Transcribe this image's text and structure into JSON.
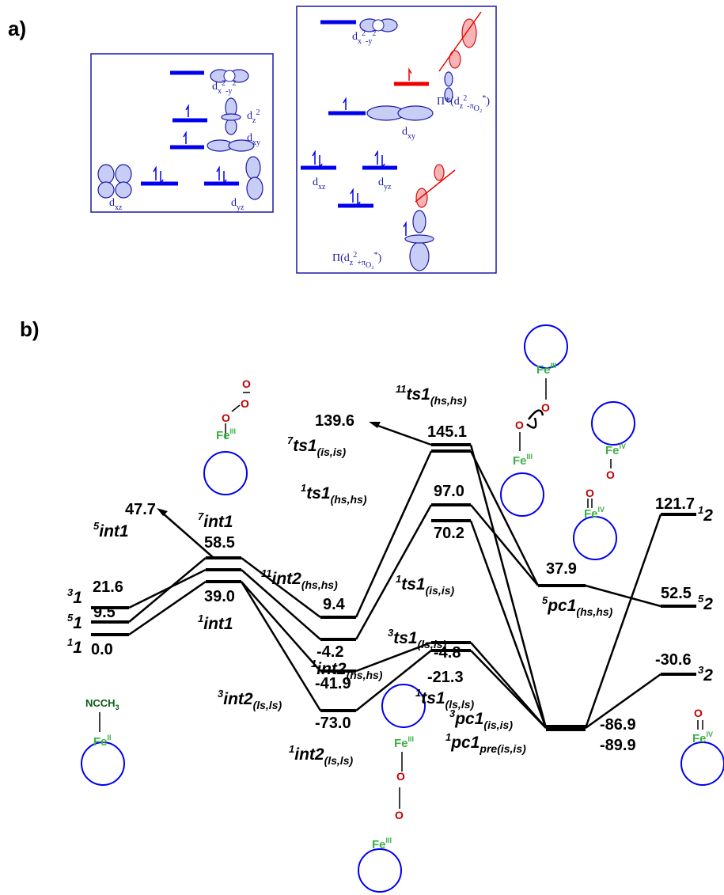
{
  "panel_labels": [
    "a)",
    "b)"
  ],
  "orbitals_left": [
    [
      "d",
      "x",
      "2",
      "-y",
      "2"
    ],
    [
      "d",
      "z",
      "2"
    ],
    [
      "d",
      "xy"
    ],
    [
      "d",
      "xz"
    ],
    [
      "d",
      "yz"
    ]
  ],
  "orbitals_right": [
    [
      "d",
      "x",
      "2",
      "-y",
      "2"
    ],
    [
      "Π*(d",
      "z",
      "2",
      "-π",
      "O₂",
      "*",
      ")"
    ],
    [
      "d",
      "xy"
    ],
    [
      "d",
      "xz"
    ],
    [
      "d",
      "yz"
    ],
    [
      "Π(d",
      "z",
      "2",
      "+π",
      "O₂",
      "*",
      ")"
    ]
  ],
  "species": [
    {
      "sup": "3",
      "name": "1"
    },
    {
      "sup": "5",
      "name": "1"
    },
    {
      "sup": "1",
      "name": "1"
    },
    {
      "sup": "5",
      "name": "int1"
    },
    {
      "sup": "7",
      "name": "int1"
    },
    {
      "sup": "1",
      "name": "int1"
    },
    {
      "sup": "11",
      "name": "int2",
      "sub": "(hs,hs)"
    },
    {
      "sup": "1",
      "name": "int2",
      "sub": "(hs,hs)"
    },
    {
      "sup": "3",
      "name": "int2",
      "sub": "(ls,ls)"
    },
    {
      "sup": "1",
      "name": "int2",
      "sub": "(ls,ls)"
    },
    {
      "sup": "11",
      "name": "ts1",
      "sub": "(hs,hs)"
    },
    {
      "sup": "7",
      "name": "ts1",
      "sub": "(is,is)"
    },
    {
      "sup": "1",
      "name": "ts1",
      "sub": "(hs,hs)"
    },
    {
      "sup": "1",
      "name": "ts1",
      "sub": "(is,is)"
    },
    {
      "sup": "3",
      "name": "ts1",
      "sub": "(ls,ls)"
    },
    {
      "sup": "1",
      "name": "ts1",
      "sub": "(ls,ls)"
    },
    {
      "sup": "5",
      "name": "pc1",
      "sub": "(hs,hs)"
    },
    {
      "sup": "3",
      "name": "pc1",
      "sub": "(is,is)"
    },
    {
      "sup": "1",
      "name": "pc1",
      "sub": "pre(is,is)"
    },
    {
      "sup": "1",
      "name": "2"
    },
    {
      "sup": "5",
      "name": "2"
    },
    {
      "sup": "3",
      "name": "2"
    }
  ],
  "energies": [
    "21.6",
    "9.5",
    "0.0",
    "47.7",
    "58.5",
    "39.0",
    "9.4",
    "-4.2",
    "-41.9",
    "-73.0",
    "139.6",
    "145.1",
    "97.0",
    "70.2",
    "-4.8",
    "-21.3",
    "37.9",
    "-86.9",
    "-89.9",
    "121.7",
    "52.5",
    "-30.6"
  ],
  "ligand": [
    "NCCH",
    "3"
  ],
  "iron_labels": [
    [
      "Fe",
      "II"
    ],
    [
      "Fe",
      "III"
    ],
    [
      "Fe",
      "III"
    ],
    [
      "Fe",
      "III"
    ],
    [
      "Fe",
      "IV"
    ],
    [
      "Fe",
      "IV"
    ],
    [
      "Fe",
      "III"
    ],
    [
      "Fe",
      "III"
    ],
    [
      "Fe",
      "IV"
    ]
  ],
  "oxygen_labels": [
    "O",
    "O",
    "O",
    "O",
    "O",
    "O",
    "O",
    "O",
    "O",
    "O"
  ]
}
